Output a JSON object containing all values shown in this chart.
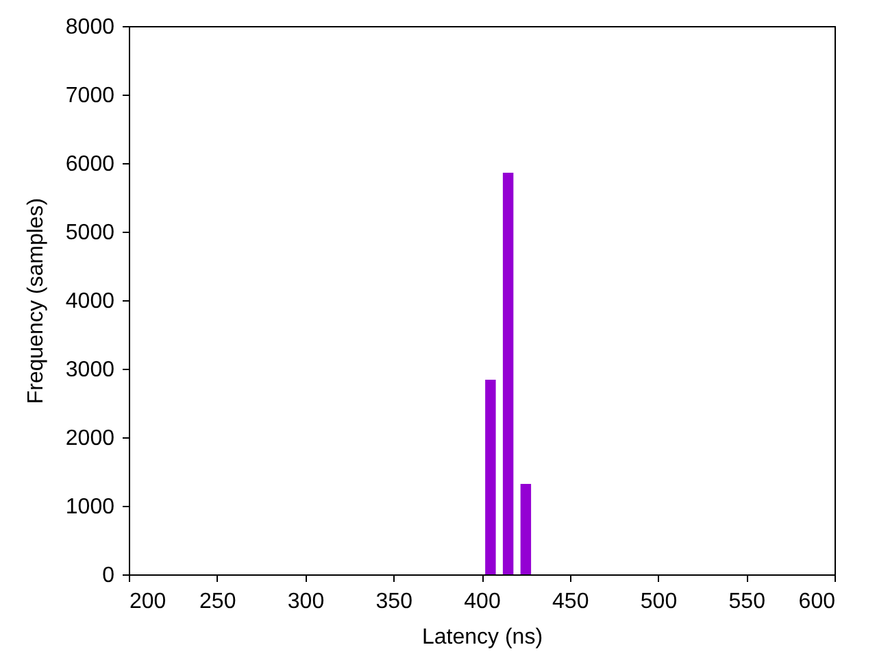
{
  "chart_data": {
    "type": "bar",
    "xlabel": "Latency (ns)",
    "ylabel": "Frequency (samples)",
    "x": [
      405,
      415,
      425
    ],
    "values": [
      2840,
      5860,
      1320
    ],
    "color": "#9400d3",
    "xlim": [
      200,
      600
    ],
    "xticks": [
      200,
      250,
      300,
      350,
      400,
      450,
      500,
      550,
      600
    ],
    "ylim": [
      0,
      8000
    ],
    "yticks": [
      0,
      1000,
      2000,
      3000,
      4000,
      5000,
      6000,
      7000,
      8000
    ]
  }
}
